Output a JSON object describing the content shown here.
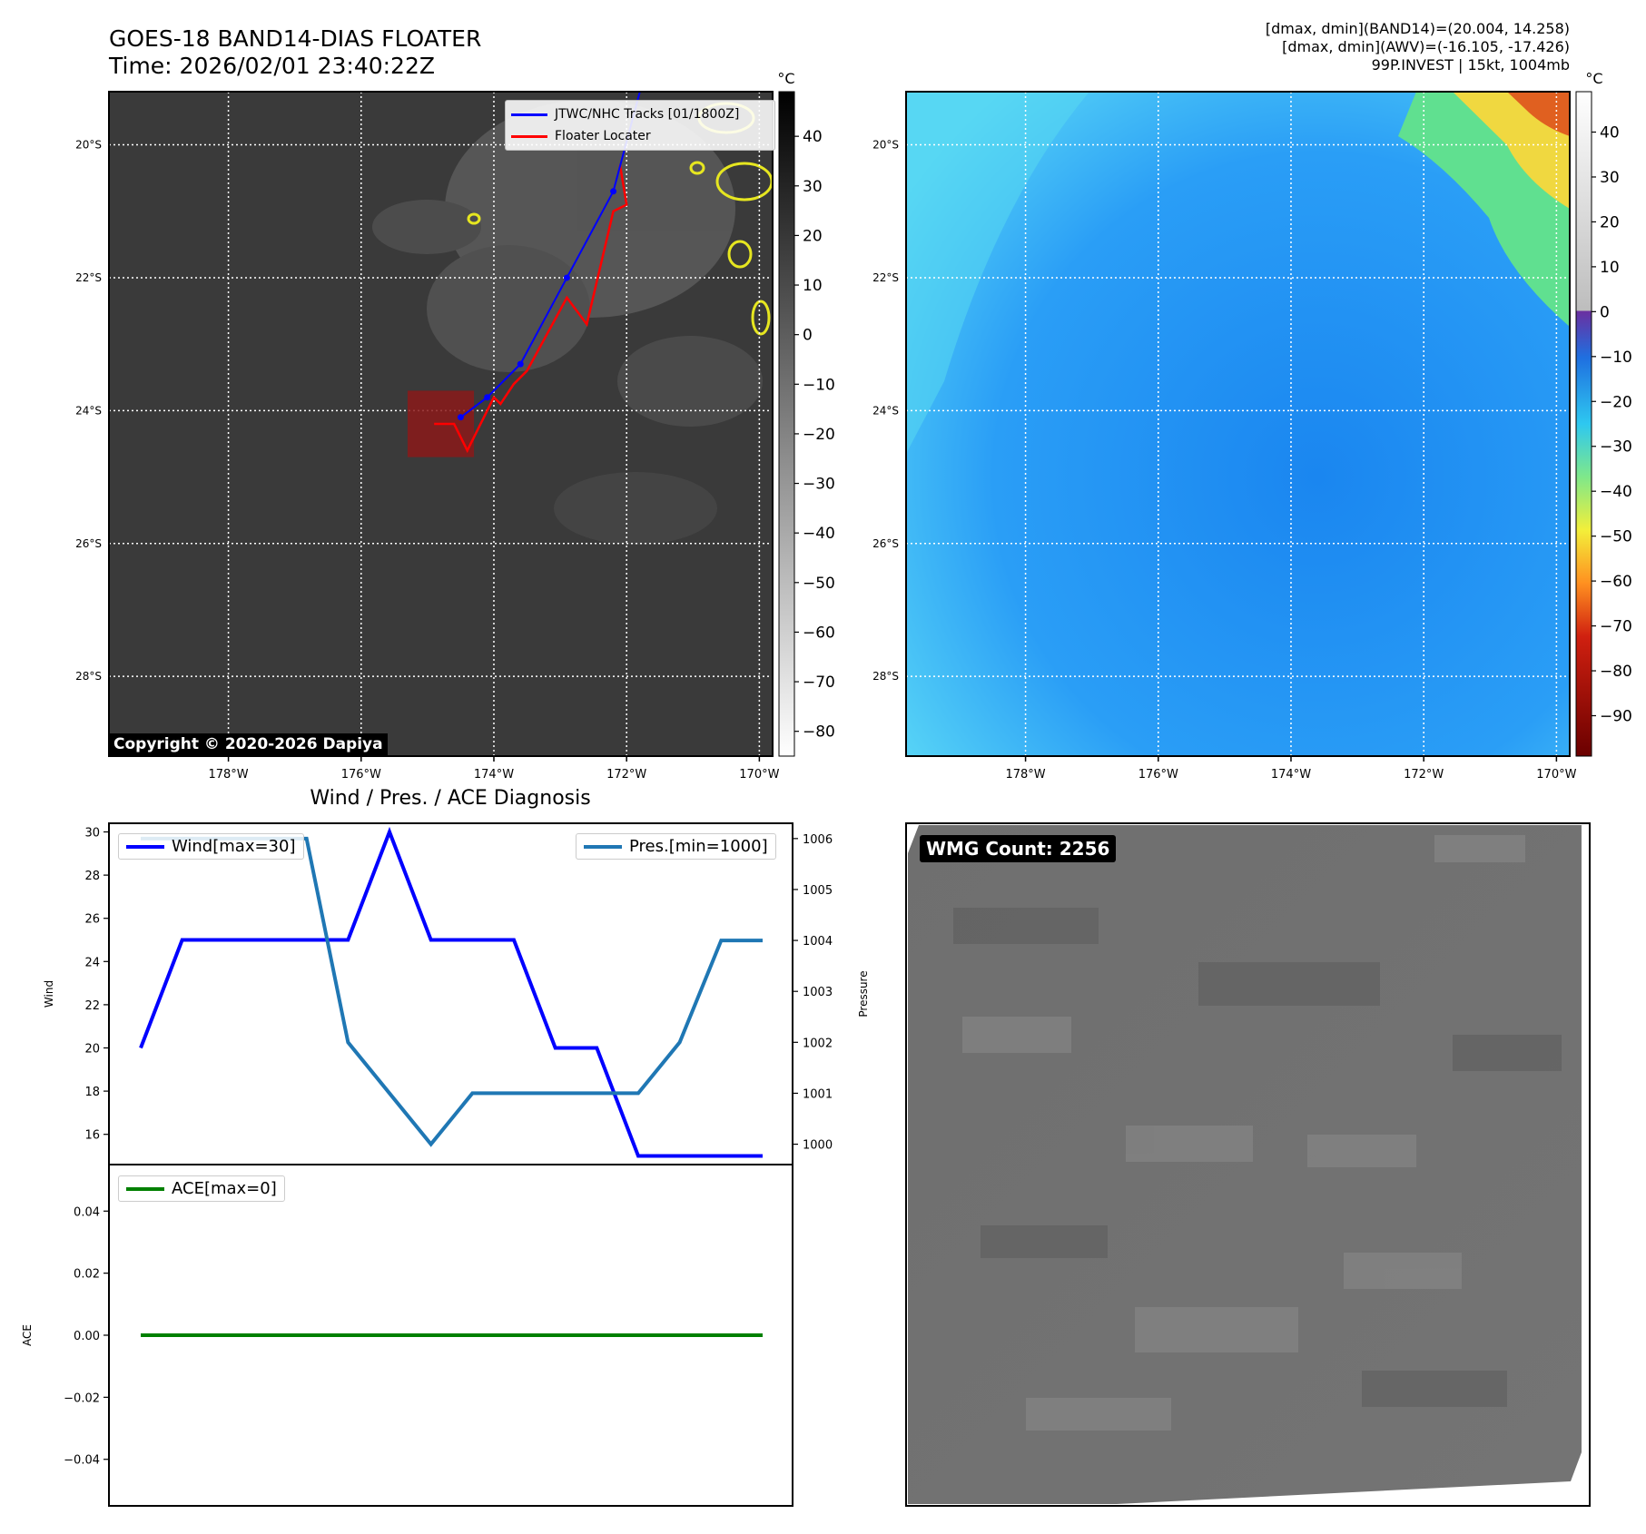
{
  "header": {
    "title_line1": "GOES-18 BAND14-DIAS FLOATER",
    "title_line2": "Time: 2026/02/01 23:40:22Z",
    "info_line1": "[dmax, dmin](BAND14)=(20.004, 14.258)",
    "info_line2": "[dmax, dmin](AWV)=(-16.105, -17.426)",
    "info_line3": "99P.INVEST | 15kt, 1004mb"
  },
  "copyright": "Copyright © 2020-2026 Dapiya",
  "wmg_count": "WMG Count: 2256",
  "map_legend": {
    "tracks": "JTWC/NHC Tracks [01/1800Z]",
    "locater": "Floater Locater"
  },
  "colors": {
    "track": "#0000ff",
    "locater": "#ff0000",
    "wind": "#0000ff",
    "pressure": "#1f77b4",
    "ace": "#008000"
  },
  "chart_data": [
    {
      "type": "heatmap",
      "name": "band14-ir-map",
      "colorbar_unit": "°C",
      "colorbar_ticks": [
        40,
        30,
        20,
        10,
        0,
        -10,
        -20,
        -30,
        -40,
        -50,
        -60,
        -70,
        -80
      ],
      "lon_ticks": [
        "178°W",
        "176°W",
        "174°W",
        "172°W",
        "170°W"
      ],
      "lat_ticks": [
        "20°S",
        "22°S",
        "24°S",
        "26°S",
        "28°S"
      ],
      "lon_values": [
        -178,
        -176,
        -174,
        -172,
        -170
      ],
      "lat_values": [
        -20,
        -22,
        -24,
        -26,
        -28
      ],
      "lon_range": [
        -179.8,
        -169.8
      ],
      "lat_range": [
        -29.2,
        -19.2
      ],
      "track": [
        [
          -171.8,
          -19.2
        ],
        [
          -172.2,
          -20.7
        ],
        [
          -172.9,
          -22.0
        ],
        [
          -173.6,
          -23.3
        ],
        [
          -174.1,
          -23.8
        ],
        [
          -174.5,
          -24.1
        ]
      ],
      "locater": [
        [
          -172.1,
          -20.3
        ],
        [
          -172.0,
          -20.9
        ],
        [
          -172.2,
          -21.0
        ],
        [
          -172.6,
          -22.7
        ],
        [
          -172.9,
          -22.3
        ],
        [
          -173.5,
          -23.4
        ],
        [
          -173.7,
          -23.6
        ],
        [
          -173.9,
          -23.9
        ],
        [
          -174.0,
          -23.8
        ],
        [
          -174.1,
          -24.0
        ],
        [
          -174.4,
          -24.6
        ],
        [
          -174.6,
          -24.2
        ],
        [
          -174.9,
          -24.2
        ]
      ],
      "locater_box": {
        "lon": [
          -175.3,
          -174.3
        ],
        "lat": [
          -24.7,
          -23.7
        ]
      }
    },
    {
      "type": "heatmap",
      "name": "awv-map",
      "colorbar_unit": "°C",
      "colorbar_ticks": [
        40,
        30,
        20,
        10,
        0,
        -10,
        -20,
        -30,
        -40,
        -50,
        -60,
        -70,
        -80,
        -90
      ],
      "lon_ticks": [
        "178°W",
        "176°W",
        "174°W",
        "172°W",
        "170°W"
      ],
      "lat_ticks": [
        "20°S",
        "22°S",
        "24°S",
        "26°S",
        "28°S"
      ],
      "lon_values": [
        -178,
        -176,
        -174,
        -172,
        -170
      ],
      "lat_values": [
        -20,
        -22,
        -24,
        -26,
        -28
      ]
    },
    {
      "type": "line",
      "title": "Wind / Pres. / ACE Diagnosis",
      "x": [
        0,
        1,
        2,
        3,
        4,
        5,
        6,
        7,
        8,
        9,
        10,
        11,
        12,
        13,
        14,
        15
      ],
      "series": [
        {
          "name": "Wind[max=30]",
          "axis": "left",
          "values": [
            20,
            25,
            25,
            25,
            25,
            25,
            30,
            25,
            25,
            25,
            20,
            20,
            15,
            15,
            15,
            15
          ]
        },
        {
          "name": "Pres.[min=1000]",
          "axis": "right",
          "values": [
            1006,
            1006,
            1006,
            1006,
            1006,
            1002,
            1001,
            1000,
            1001,
            1001,
            1001,
            1001,
            1001,
            1002,
            1004,
            1004
          ]
        }
      ],
      "ylabel": "Wind",
      "ylabel_right": "Pressure",
      "yticks": [
        30,
        28,
        26,
        24,
        22,
        20,
        18,
        16
      ],
      "yticks_right": [
        1006,
        1005,
        1004,
        1003,
        1002,
        1001,
        1000
      ],
      "ylim": [
        14.6,
        30.4
      ],
      "ylim_right": [
        999.6,
        1006.3
      ]
    },
    {
      "type": "line",
      "x": [
        0,
        1,
        2,
        3,
        4,
        5,
        6,
        7,
        8,
        9,
        10,
        11,
        12,
        13,
        14,
        15
      ],
      "series": [
        {
          "name": "ACE[max=0]",
          "values": [
            0,
            0,
            0,
            0,
            0,
            0,
            0,
            0,
            0,
            0,
            0,
            0,
            0,
            0,
            0,
            0
          ]
        }
      ],
      "ylabel": "ACE",
      "yticks": [
        "0.04",
        "0.02",
        "0.00",
        "−0.02",
        "−0.04"
      ],
      "ytick_values": [
        0.04,
        0.02,
        0,
        -0.02,
        -0.04
      ],
      "ylim": [
        -0.055,
        0.055
      ]
    }
  ]
}
